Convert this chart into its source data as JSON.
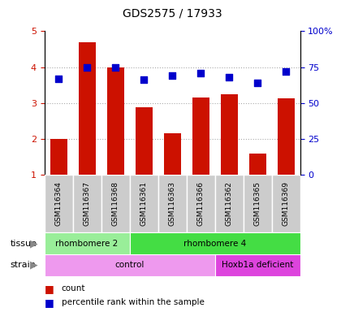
{
  "title": "GDS2575 / 17933",
  "samples": [
    "GSM116364",
    "GSM116367",
    "GSM116368",
    "GSM116361",
    "GSM116363",
    "GSM116366",
    "GSM116362",
    "GSM116365",
    "GSM116369"
  ],
  "count_values": [
    2.0,
    4.7,
    4.0,
    2.88,
    2.15,
    3.15,
    3.25,
    1.6,
    3.12
  ],
  "percentile_values": [
    67,
    75,
    75,
    66,
    69,
    71,
    68,
    64,
    72
  ],
  "ylim_left": [
    1,
    5
  ],
  "ylim_right": [
    0,
    100
  ],
  "yticks_left": [
    1,
    2,
    3,
    4,
    5
  ],
  "yticks_right": [
    0,
    25,
    50,
    75,
    100
  ],
  "bar_color": "#cc1100",
  "dot_color": "#0000cc",
  "tissue_groups": [
    {
      "label": "rhombomere 2",
      "start": 0,
      "end": 3,
      "color": "#99ee99"
    },
    {
      "label": "rhombomere 4",
      "start": 3,
      "end": 9,
      "color": "#44dd44"
    }
  ],
  "strain_groups": [
    {
      "label": "control",
      "start": 0,
      "end": 6,
      "color": "#ee99ee"
    },
    {
      "label": "Hoxb1a deficient",
      "start": 6,
      "end": 9,
      "color": "#dd44dd"
    }
  ],
  "tissue_label": "tissue",
  "strain_label": "strain",
  "legend_count": "count",
  "legend_pct": "percentile rank within the sample",
  "grid_color": "#aaaaaa",
  "bg_color": "#ffffff",
  "plot_bg": "#ffffff",
  "right_axis_color": "#0000cc",
  "left_axis_color": "#cc1100",
  "label_bg": "#cccccc",
  "bar_width": 0.6
}
